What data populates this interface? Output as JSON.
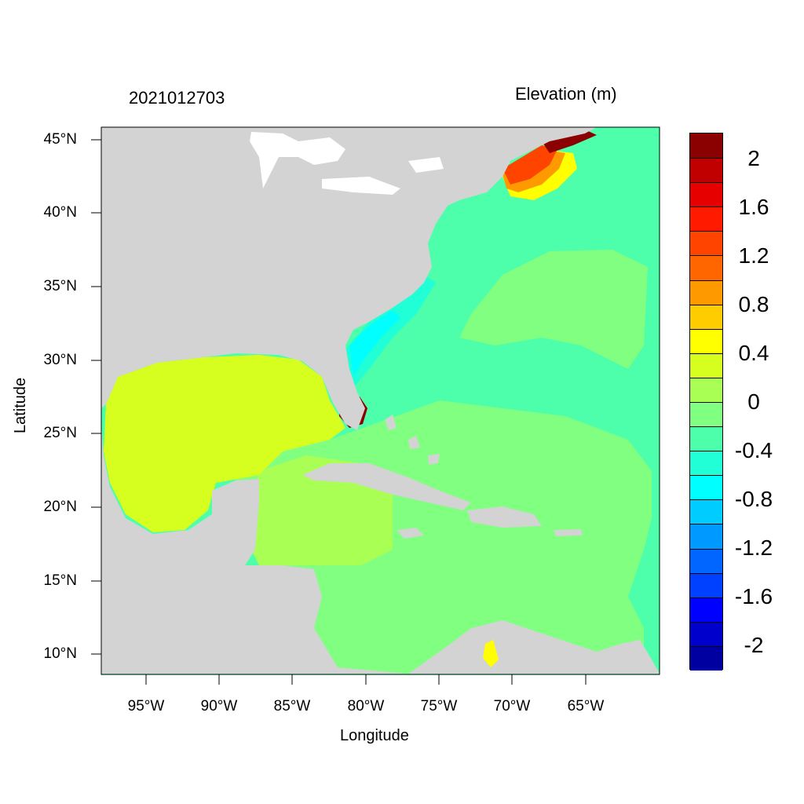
{
  "map": {
    "title_left": "2021012703",
    "title_right": "Elevation (m)",
    "xlabel": "Longitude",
    "ylabel": "Latitude",
    "lat_ticks": [
      "45°N",
      "40°N",
      "35°N",
      "30°N",
      "25°N",
      "20°N",
      "15°N",
      "10°N"
    ],
    "lon_ticks": [
      "95°W",
      "90°W",
      "85°W",
      "80°W",
      "75°W",
      "70°W",
      "65°W"
    ],
    "land_color": "#d3d3d3",
    "ocean_base_color": "#4dffaa"
  },
  "colorbar": {
    "labels": [
      "2",
      "1.6",
      "1.2",
      "0.8",
      "0.4",
      "0",
      "-0.4",
      "-0.8",
      "-1.2",
      "-1.6",
      "-2"
    ],
    "colors": [
      "#8b0000",
      "#c00000",
      "#e60000",
      "#ff1a00",
      "#ff4400",
      "#ff6600",
      "#ff9900",
      "#ffcc00",
      "#ffff00",
      "#d6ff20",
      "#aaff55",
      "#80ff80",
      "#4dffaa",
      "#20ffd5",
      "#00ffff",
      "#00ccff",
      "#0099ff",
      "#0066ff",
      "#0040ff",
      "#0000ff",
      "#0000cc",
      "#0000a0"
    ]
  }
}
